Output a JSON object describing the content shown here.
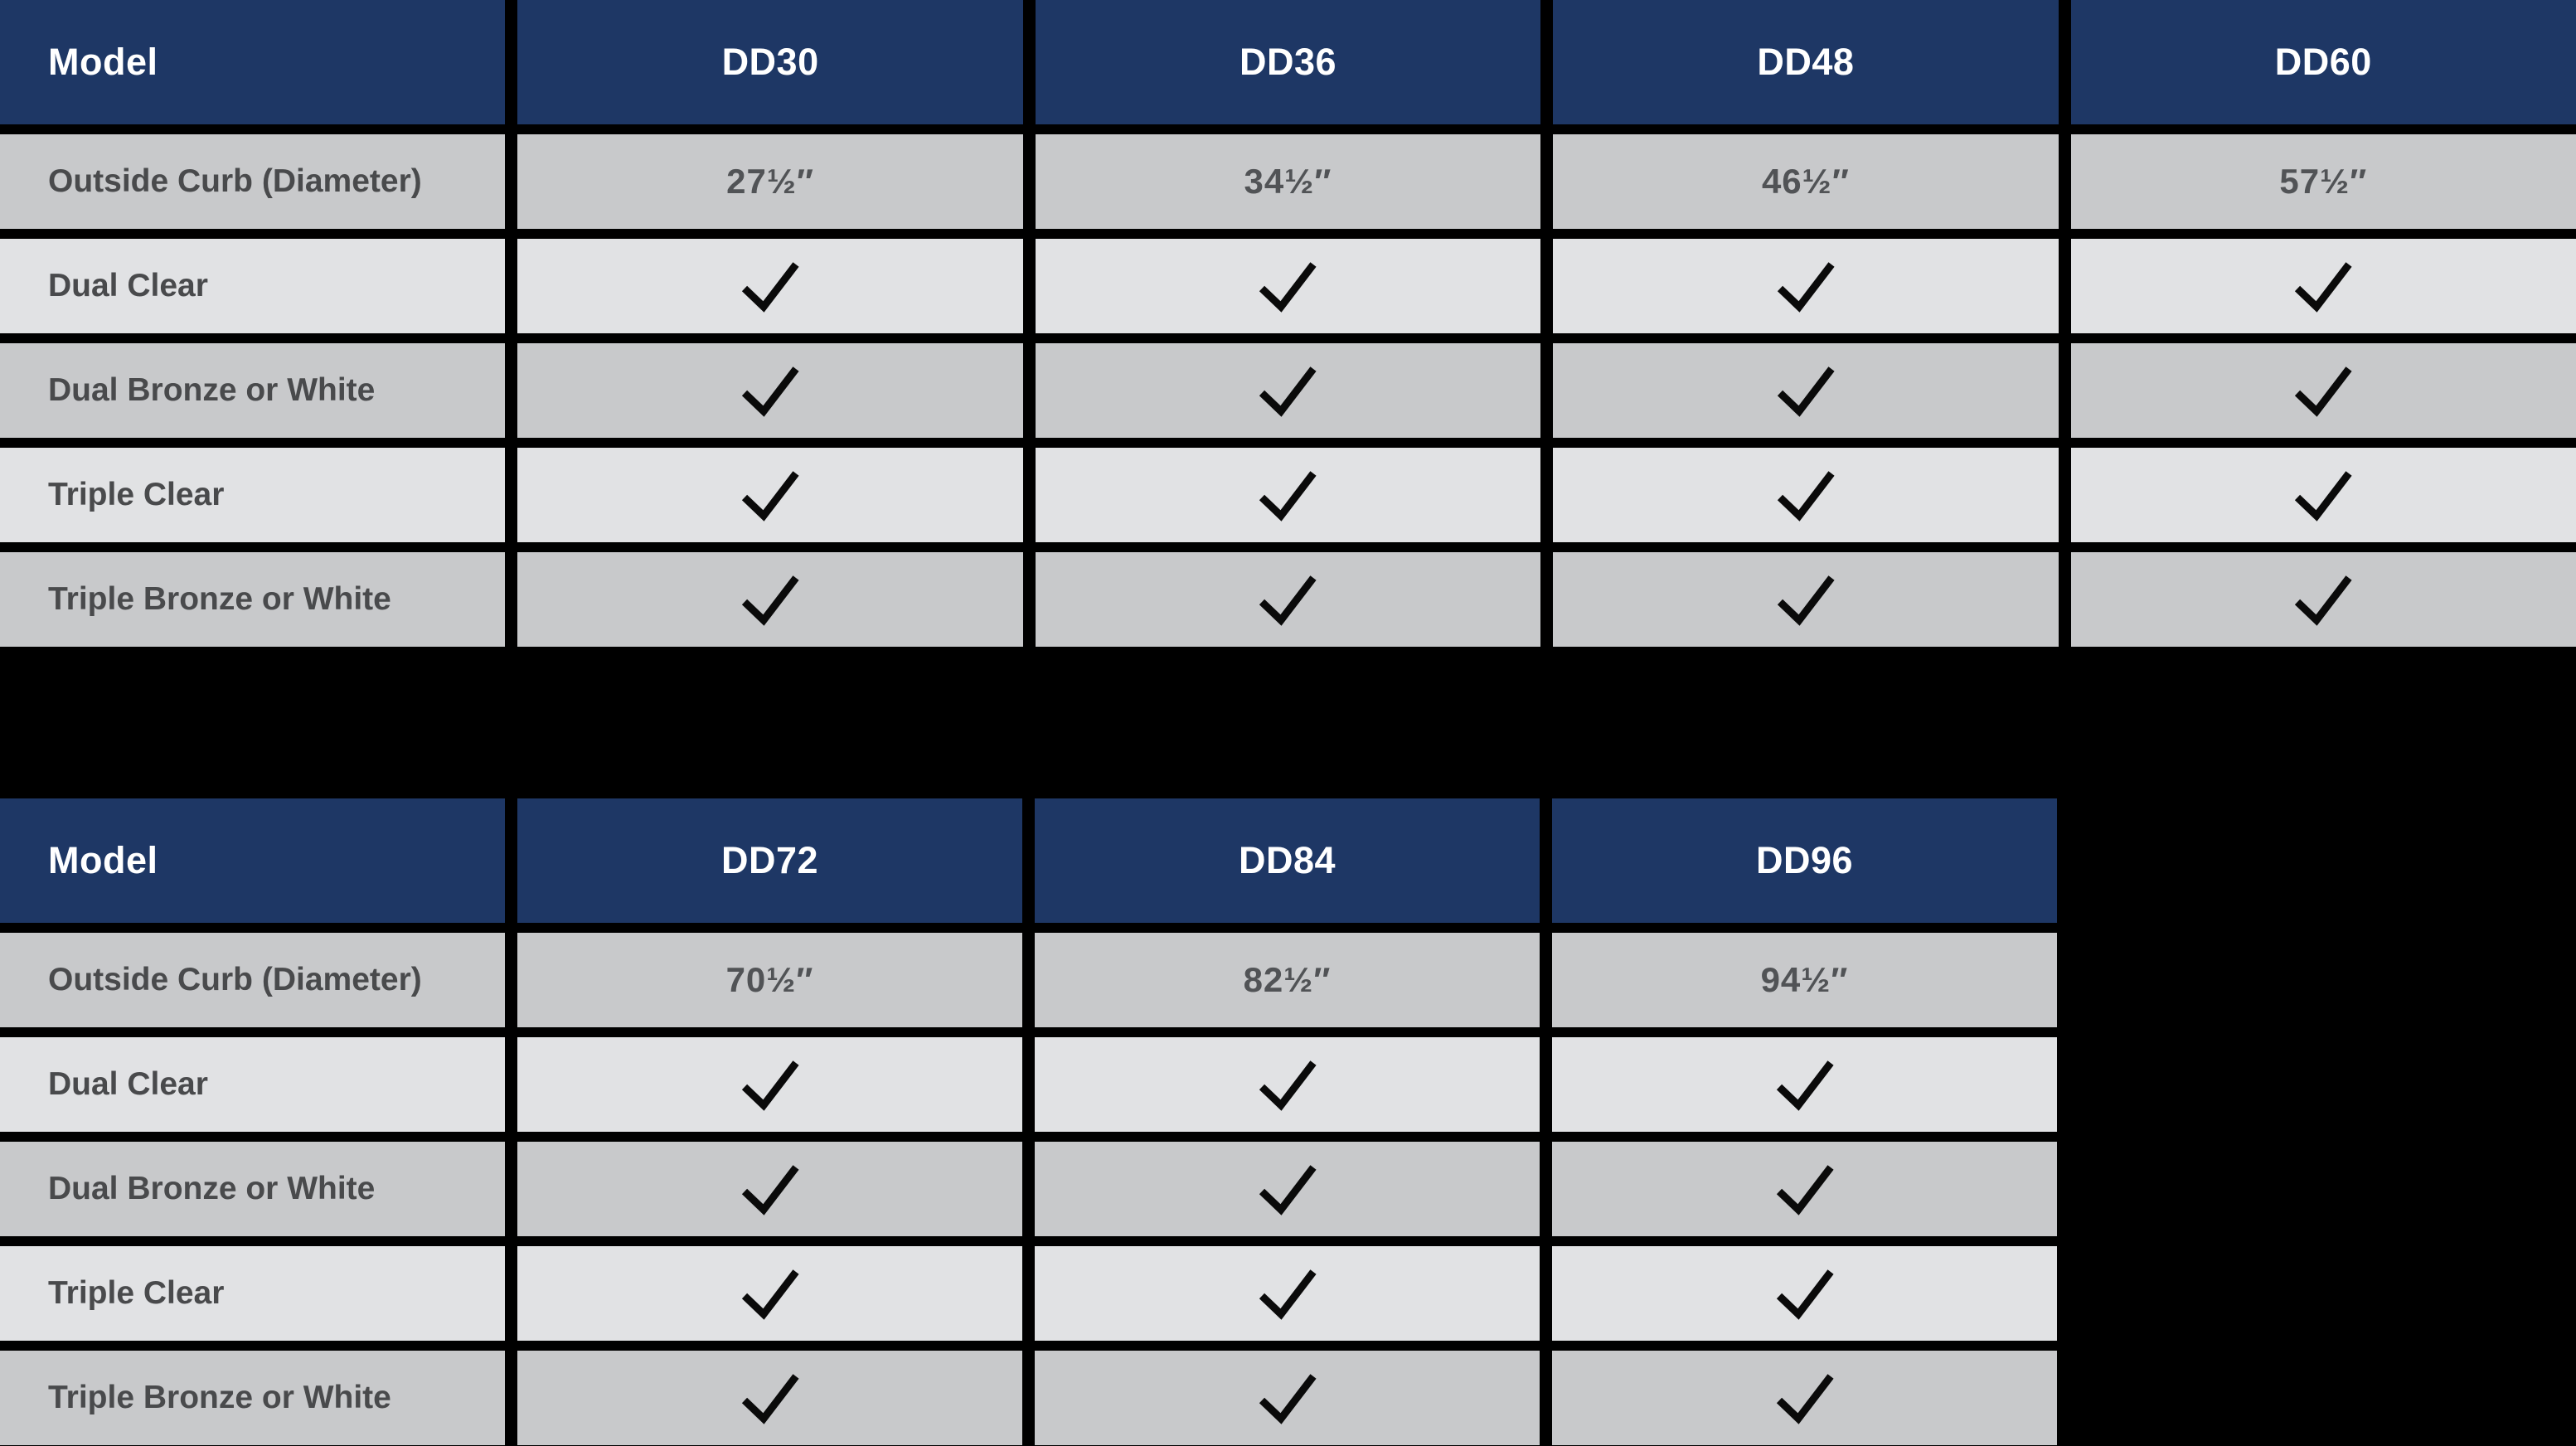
{
  "page": {
    "background_color": "#000000",
    "description": "Product specification comparison tables for DD series models"
  },
  "colors": {
    "header_background": "#1e3765",
    "header_text": "#ffffff",
    "row_dark_background": "#c8c9cb",
    "row_light_background": "#e1e2e4",
    "label_text": "#494a4c",
    "value_text": "#515356",
    "checkmark": "#0a0a0a",
    "grid_gap": "#000000"
  },
  "tables": [
    {
      "name": "models-dd30-dd60",
      "header": [
        "Model",
        "DD30",
        "DD36",
        "DD48",
        "DD60"
      ],
      "rows": [
        {
          "label": "Outside Curb (Diameter)",
          "type": "text",
          "values": [
            "27½″",
            "34½″",
            "46½″",
            "57½″"
          ]
        },
        {
          "label": "Dual Clear",
          "type": "check",
          "values": [
            true,
            true,
            true,
            true
          ]
        },
        {
          "label": "Dual Bronze or White",
          "type": "check",
          "values": [
            true,
            true,
            true,
            true
          ]
        },
        {
          "label": "Triple Clear",
          "type": "check",
          "values": [
            true,
            true,
            true,
            true
          ]
        },
        {
          "label": "Triple Bronze or White",
          "type": "check",
          "values": [
            true,
            true,
            true,
            true
          ]
        }
      ]
    },
    {
      "name": "models-dd72-dd96",
      "header": [
        "Model",
        "DD72",
        "DD84",
        "DD96"
      ],
      "rows": [
        {
          "label": "Outside Curb (Diameter)",
          "type": "text",
          "values": [
            "70½″",
            "82½″",
            "94½″"
          ]
        },
        {
          "label": "Dual Clear",
          "type": "check",
          "values": [
            true,
            true,
            true
          ]
        },
        {
          "label": "Dual Bronze or White",
          "type": "check",
          "values": [
            true,
            true,
            true
          ]
        },
        {
          "label": "Triple Clear",
          "type": "check",
          "values": [
            true,
            true,
            true
          ]
        },
        {
          "label": "Triple Bronze or White",
          "type": "check",
          "values": [
            true,
            true,
            true
          ]
        }
      ]
    }
  ]
}
